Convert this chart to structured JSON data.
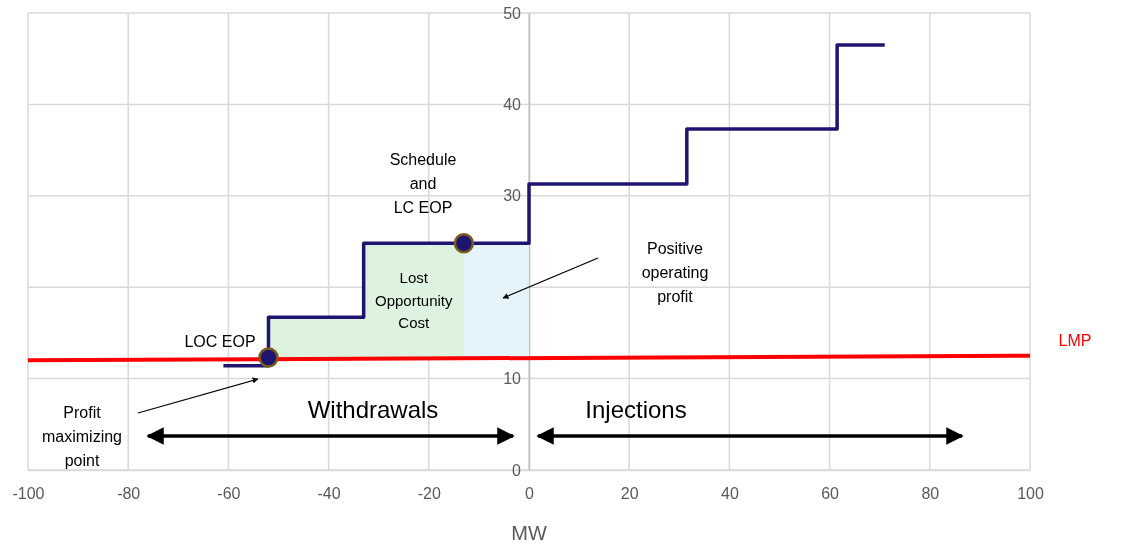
{
  "chart_data": {
    "type": "step",
    "xlabel": "MW",
    "xlim": [
      -100,
      100
    ],
    "xticks": [
      -100,
      -80,
      -60,
      -40,
      -20,
      0,
      20,
      40,
      60,
      80,
      100
    ],
    "ylim": [
      0,
      50
    ],
    "yticks": [
      0,
      10,
      {
        "value": 20,
        "label": null
      },
      30,
      40,
      50
    ],
    "grid": true,
    "series": [
      {
        "type": "line",
        "name": "LMP",
        "color": "#ff0000",
        "x": [
          -100,
          100
        ],
        "values": [
          12.0,
          12.5
        ]
      },
      {
        "color": "#1f1470",
        "x": [
          -61,
          -52,
          -33,
          0,
          31.5,
          61.5,
          71
        ],
        "values": [
          11.4,
          16.7,
          24.8,
          31.3,
          37.3,
          46.5,
          46.5
        ]
      },
      {
        "type": "scatter",
        "color": "#1f1470",
        "marker": "circle",
        "x": [
          -52,
          -13
        ],
        "values": [
          12.3,
          24.8
        ]
      }
    ],
    "annotations": [
      "LOC EOP",
      "Schedule\nand\nLC EOP",
      {
        "text": "Lost\nOpportunity\nCost",
        "x": -23,
        "y": 24.8
      },
      "Positive\noperating\nprofit",
      "Profit\nmaximizing\npoint",
      "Withdrawals",
      "Injections"
    ]
  }
}
